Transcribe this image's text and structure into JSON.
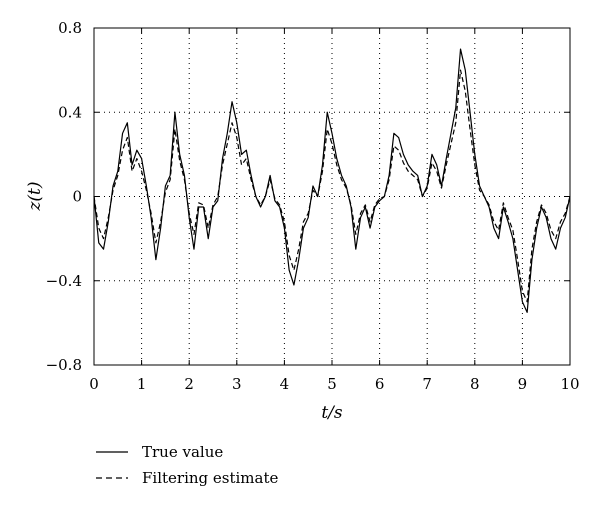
{
  "chart_data": {
    "type": "line",
    "xlabel": "t/s",
    "ylabel": "z(t)",
    "xlim": [
      0,
      10
    ],
    "ylim": [
      -0.8,
      0.8
    ],
    "x_ticks": [
      "0",
      "1",
      "2",
      "3",
      "4",
      "5",
      "6",
      "7",
      "8",
      "9",
      "10"
    ],
    "y_ticks": [
      "0.8",
      "0.4",
      "0",
      "−0.4",
      "−0.8"
    ],
    "grid": true,
    "legend_placement": "below",
    "x": [
      0,
      0.1,
      0.2,
      0.3,
      0.4,
      0.5,
      0.6,
      0.7,
      0.8,
      0.9,
      1.0,
      1.1,
      1.2,
      1.3,
      1.4,
      1.5,
      1.6,
      1.7,
      1.8,
      1.9,
      2.0,
      2.1,
      2.2,
      2.3,
      2.4,
      2.5,
      2.6,
      2.7,
      2.8,
      2.9,
      3.0,
      3.1,
      3.2,
      3.3,
      3.4,
      3.5,
      3.6,
      3.7,
      3.8,
      3.9,
      4.0,
      4.1,
      4.2,
      4.3,
      4.4,
      4.5,
      4.6,
      4.7,
      4.8,
      4.9,
      5.0,
      5.1,
      5.2,
      5.3,
      5.4,
      5.5,
      5.6,
      5.7,
      5.8,
      5.9,
      6.0,
      6.1,
      6.2,
      6.3,
      6.4,
      6.5,
      6.6,
      6.7,
      6.8,
      6.9,
      7.0,
      7.1,
      7.2,
      7.3,
      7.4,
      7.5,
      7.6,
      7.7,
      7.8,
      7.9,
      8.0,
      8.1,
      8.2,
      8.3,
      8.4,
      8.5,
      8.6,
      8.7,
      8.8,
      8.9,
      9.0,
      9.1,
      9.2,
      9.3,
      9.4,
      9.5,
      9.6,
      9.7,
      9.8,
      9.9,
      10.0
    ],
    "series": [
      {
        "name": "True value",
        "style": "solid",
        "values": [
          0.0,
          -0.22,
          -0.25,
          -0.12,
          0.05,
          0.12,
          0.3,
          0.35,
          0.15,
          0.22,
          0.18,
          0.05,
          -0.1,
          -0.3,
          -0.15,
          0.05,
          0.1,
          0.4,
          0.2,
          0.1,
          -0.1,
          -0.25,
          -0.05,
          -0.05,
          -0.2,
          -0.05,
          -0.02,
          0.18,
          0.3,
          0.45,
          0.35,
          0.2,
          0.22,
          0.1,
          0.0,
          -0.05,
          0.0,
          0.1,
          -0.02,
          -0.05,
          -0.15,
          -0.35,
          -0.42,
          -0.3,
          -0.15,
          -0.1,
          0.05,
          0.0,
          0.15,
          0.4,
          0.3,
          0.18,
          0.1,
          0.05,
          -0.05,
          -0.25,
          -0.1,
          -0.05,
          -0.15,
          -0.05,
          -0.02,
          0.0,
          0.1,
          0.3,
          0.28,
          0.2,
          0.15,
          0.12,
          0.1,
          0.0,
          0.05,
          0.2,
          0.15,
          0.05,
          0.18,
          0.3,
          0.42,
          0.7,
          0.6,
          0.4,
          0.2,
          0.05,
          0.0,
          -0.05,
          -0.15,
          -0.2,
          -0.05,
          -0.12,
          -0.2,
          -0.35,
          -0.5,
          -0.55,
          -0.3,
          -0.15,
          -0.05,
          -0.1,
          -0.2,
          -0.25,
          -0.15,
          -0.1,
          0.0
        ]
      },
      {
        "name": "Filtering estimate",
        "style": "dashed",
        "values": [
          0.0,
          -0.15,
          -0.2,
          -0.1,
          0.03,
          0.1,
          0.22,
          0.28,
          0.12,
          0.18,
          0.12,
          0.03,
          -0.08,
          -0.22,
          -0.12,
          0.02,
          0.08,
          0.32,
          0.17,
          0.08,
          -0.08,
          -0.18,
          -0.03,
          -0.04,
          -0.15,
          -0.04,
          0.0,
          0.15,
          0.25,
          0.35,
          0.28,
          0.15,
          0.18,
          0.08,
          0.0,
          -0.04,
          0.0,
          0.08,
          -0.01,
          -0.04,
          -0.12,
          -0.28,
          -0.35,
          -0.25,
          -0.12,
          -0.08,
          0.03,
          0.0,
          0.12,
          0.32,
          0.25,
          0.15,
          0.08,
          0.04,
          -0.04,
          -0.18,
          -0.08,
          -0.04,
          -0.12,
          -0.04,
          -0.01,
          0.0,
          0.08,
          0.24,
          0.22,
          0.16,
          0.12,
          0.1,
          0.08,
          0.0,
          0.04,
          0.16,
          0.12,
          0.04,
          0.15,
          0.25,
          0.35,
          0.6,
          0.5,
          0.32,
          0.15,
          0.03,
          0.0,
          -0.04,
          -0.12,
          -0.16,
          -0.03,
          -0.1,
          -0.16,
          -0.3,
          -0.45,
          -0.5,
          -0.25,
          -0.12,
          -0.04,
          -0.08,
          -0.16,
          -0.2,
          -0.12,
          -0.08,
          0.0
        ]
      }
    ]
  },
  "colors": {
    "line": "#000000",
    "background": "#ffffff"
  }
}
